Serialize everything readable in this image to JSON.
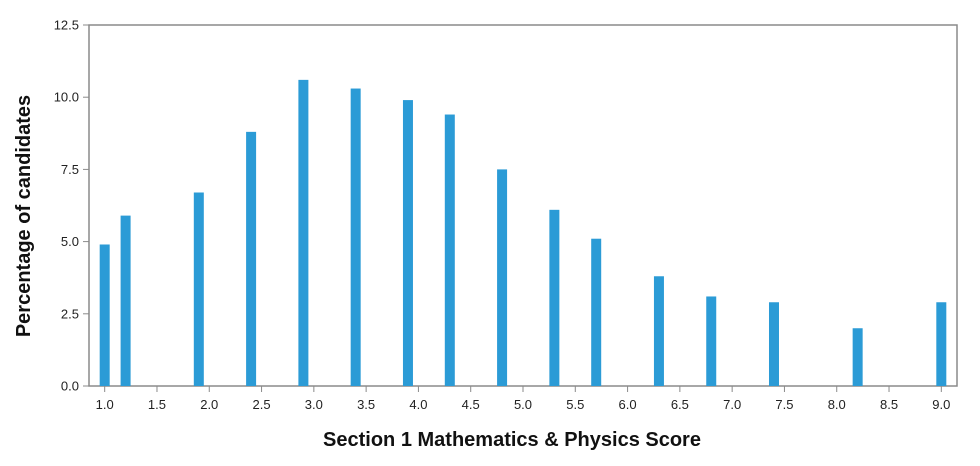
{
  "chart_data": {
    "type": "bar",
    "title": "",
    "xlabel": "Section 1 Mathematics & Physics Score",
    "ylabel": "Percentage of candidates",
    "xlim": [
      0.85,
      9.15
    ],
    "ylim": [
      0,
      12.5
    ],
    "x_ticks": [
      "1.0",
      "1.5",
      "2.0",
      "2.5",
      "3.0",
      "3.5",
      "4.0",
      "4.5",
      "5.0",
      "5.5",
      "6.0",
      "6.5",
      "7.0",
      "7.5",
      "8.0",
      "8.5",
      "9.0"
    ],
    "x_tick_values": [
      1.0,
      1.5,
      2.0,
      2.5,
      3.0,
      3.5,
      4.0,
      4.5,
      5.0,
      5.5,
      6.0,
      6.5,
      7.0,
      7.5,
      8.0,
      8.5,
      9.0
    ],
    "y_ticks": [
      "0.0",
      "2.5",
      "5.0",
      "7.5",
      "10.0",
      "12.5"
    ],
    "y_tick_values": [
      0,
      2.5,
      5,
      7.5,
      10,
      12.5
    ],
    "x": [
      1.0,
      1.2,
      1.9,
      2.4,
      2.9,
      3.4,
      3.9,
      4.3,
      4.8,
      5.3,
      5.7,
      6.3,
      6.8,
      7.4,
      8.2,
      9.0
    ],
    "values": [
      4.9,
      5.9,
      6.7,
      8.8,
      10.6,
      10.3,
      9.9,
      9.4,
      7.5,
      6.1,
      5.1,
      3.8,
      3.1,
      2.9,
      2.0,
      2.9
    ],
    "bar_color": "#2b9bd6",
    "grid": false,
    "legend": "none"
  }
}
